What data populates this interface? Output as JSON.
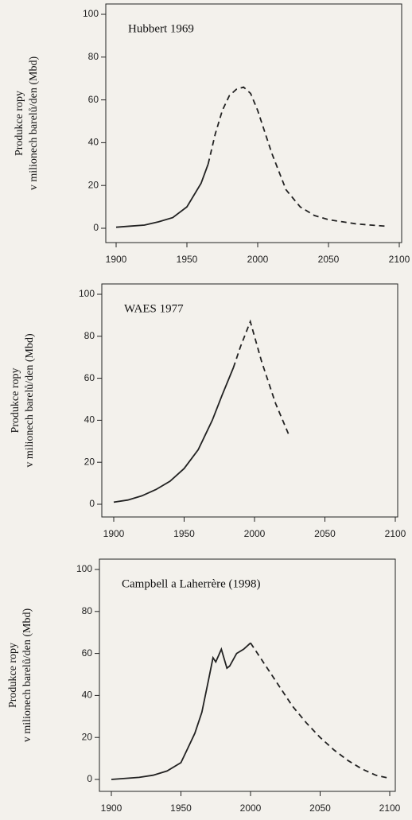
{
  "chart_data": [
    {
      "type": "line",
      "title": "Hubbert 1969",
      "ylabel": [
        "Produkce ropy",
        "v milionech barelů/den (Mbd)"
      ],
      "x": [
        1900,
        1910,
        1920,
        1930,
        1940,
        1950,
        1960,
        1965,
        1970,
        1975,
        1980,
        1985,
        1990,
        1995,
        2000,
        2010,
        2020,
        2030,
        2040,
        2050,
        2060,
        2070,
        2080,
        2090
      ],
      "series": [
        {
          "color": "#222222",
          "values": [
            0.5,
            1,
            1.5,
            3,
            5,
            10,
            21,
            30,
            44,
            55,
            62,
            65,
            66,
            63,
            55,
            35,
            18,
            10,
            6,
            4,
            3,
            2,
            1.5,
            1
          ]
        }
      ],
      "dash_from": 1965,
      "xlim": [
        1900,
        2100
      ],
      "xticks": [
        1900,
        1950,
        2000,
        2050,
        2100
      ],
      "ylim": [
        0,
        100
      ],
      "yticks": [
        0,
        20,
        40,
        60,
        80,
        100
      ]
    },
    {
      "type": "line",
      "title": "WAES 1977",
      "ylabel": [
        "Produkce ropy",
        "v milionech barelů/den (Mbd)"
      ],
      "x": [
        1900,
        1910,
        1920,
        1930,
        1940,
        1950,
        1960,
        1970,
        1977,
        1985,
        1990,
        1997,
        2005,
        2015,
        2025
      ],
      "series": [
        {
          "color": "#222222",
          "values": [
            1,
            2,
            4,
            7,
            11,
            17,
            26,
            40,
            52,
            65,
            75,
            87,
            68,
            48,
            32
          ]
        }
      ],
      "dash_from": 1985,
      "xlim": [
        1900,
        2100
      ],
      "xticks": [
        1900,
        1950,
        2000,
        2050,
        2100
      ],
      "ylim": [
        0,
        100
      ],
      "yticks": [
        0,
        20,
        40,
        60,
        80,
        100
      ]
    },
    {
      "type": "line",
      "title": "Campbell a Laherrère (1998)",
      "ylabel": [
        "Produkce ropy",
        "v milionech barelů/den (Mbd)"
      ],
      "x": [
        1900,
        1920,
        1930,
        1940,
        1950,
        1955,
        1960,
        1965,
        1970,
        1973,
        1975,
        1979,
        1983,
        1985,
        1990,
        1995,
        2000,
        2010,
        2020,
        2030,
        2040,
        2050,
        2060,
        2070,
        2080,
        2090,
        2100
      ],
      "series": [
        {
          "color": "#222222",
          "values": [
            0,
            1,
            2,
            4,
            8,
            15,
            22,
            32,
            48,
            58,
            56,
            62,
            53,
            54,
            60,
            62,
            65,
            55,
            45,
            35,
            27,
            20,
            14,
            9,
            5,
            2,
            0.5
          ]
        }
      ],
      "dash_from": 2000,
      "xlim": [
        1900,
        2100
      ],
      "xticks": [
        1900,
        1950,
        2000,
        2050,
        2100
      ],
      "ylim": [
        0,
        100
      ],
      "yticks": [
        0,
        20,
        40,
        60,
        80,
        100
      ]
    }
  ]
}
